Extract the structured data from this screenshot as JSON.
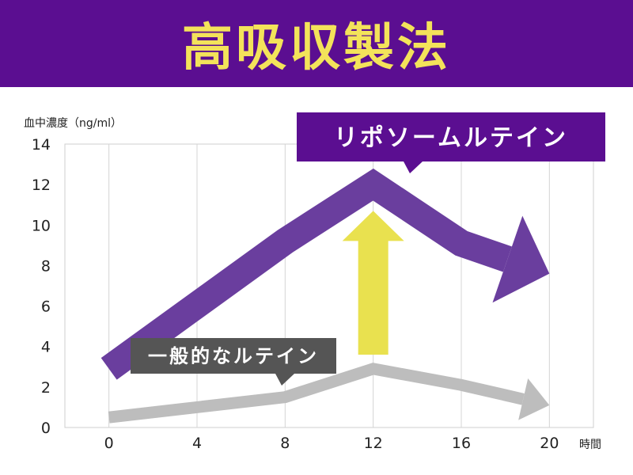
{
  "banner": {
    "title": "高吸収製法",
    "bg": "#5b0e91",
    "fg": "#f3e35a"
  },
  "chart_data": {
    "type": "line",
    "ylabel": "血中濃度（ng/ml）",
    "xunit": "時間",
    "x_ticks": [
      0,
      4,
      8,
      12,
      16,
      20
    ],
    "y_ticks": [
      0,
      2,
      4,
      6,
      8,
      10,
      12,
      14
    ],
    "xlim": [
      -2,
      22
    ],
    "ylim": [
      0,
      14
    ],
    "grid": true,
    "series": [
      {
        "name": "リポソームルテイン",
        "color": "#6a3e9e",
        "label_bg": "#5b0e91",
        "x": [
          0,
          8,
          12,
          16,
          20
        ],
        "y": [
          2.9,
          9.2,
          12.0,
          9.1,
          7.6
        ]
      },
      {
        "name": "一般的なルテイン",
        "color": "#bdbdbd",
        "label_bg": "#555555",
        "x": [
          0,
          8,
          12,
          16,
          20
        ],
        "y": [
          0.5,
          1.5,
          2.9,
          2.1,
          1.1
        ]
      }
    ],
    "highlight_arrow": {
      "color": "#e9e14f",
      "from_y": 3.6,
      "to_y": 10.7,
      "x": 12
    }
  }
}
